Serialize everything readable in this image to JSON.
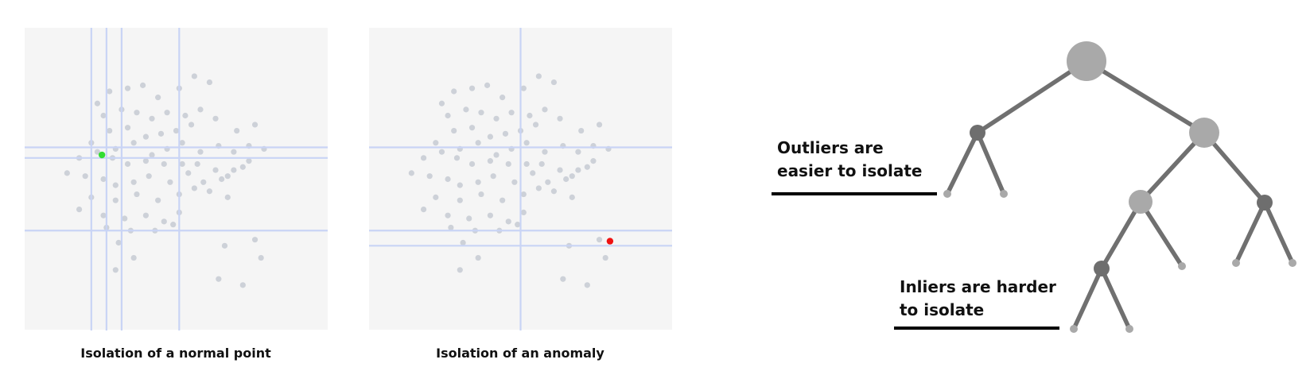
{
  "panels": [
    {
      "caption": "Isolation of a normal point",
      "target_point": [
        0.255,
        0.58
      ],
      "target_color": "#33dd33"
    },
    {
      "caption": "Isolation of an anomaly",
      "target_point": [
        0.795,
        0.295
      ],
      "target_color": "#ee1111"
    }
  ],
  "tree": {
    "annotations": [
      {
        "lines": [
          "Outliers are",
          "easier to isolate"
        ]
      },
      {
        "lines": [
          "Inliers are harder",
          "to isolate"
        ]
      }
    ]
  },
  "colors": {
    "panel_bg": "#f5f5f5",
    "split_line": "#c9d4f5",
    "data_point": "#cdd1d8",
    "node_light": "#a9a9a9",
    "node_dark": "#6e6e6e",
    "edge": "#707070",
    "underline": "#000000"
  }
}
